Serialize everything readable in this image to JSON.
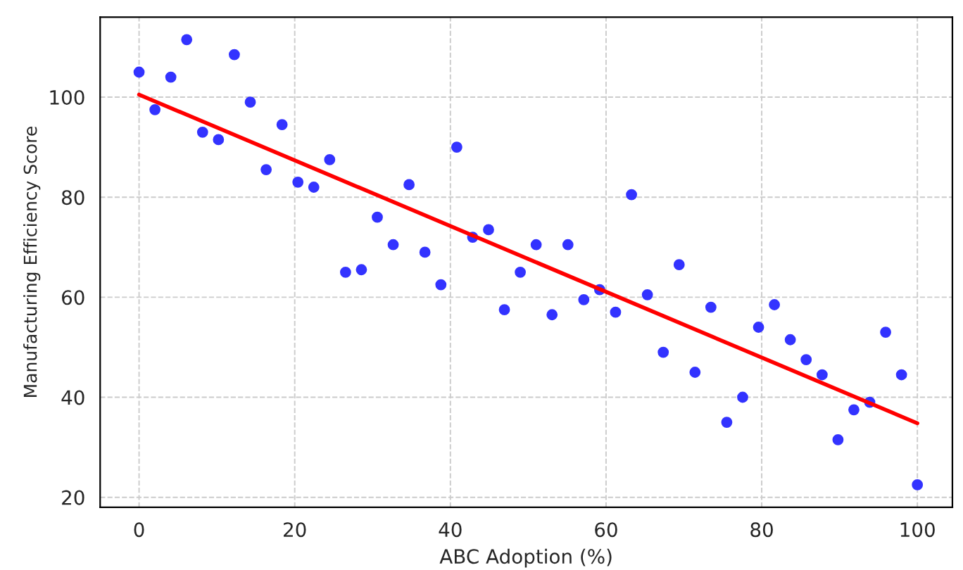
{
  "chart_data": {
    "type": "scatter",
    "xlabel": "ABC Adoption (%)",
    "ylabel": "Manufacturing Efficiency Score",
    "xlim": [
      -5,
      104.5
    ],
    "ylim": [
      18,
      116
    ],
    "xticks": [
      0,
      20,
      40,
      60,
      80,
      100
    ],
    "yticks": [
      20,
      40,
      60,
      80,
      100
    ],
    "grid": true,
    "marker": "circle",
    "series": [
      {
        "color": "#3333ff",
        "x": [
          0,
          2.04,
          4.08,
          6.12,
          8.16,
          10.2,
          12.24,
          14.29,
          16.33,
          18.37,
          20.41,
          22.45,
          24.49,
          26.53,
          28.57,
          30.61,
          32.65,
          34.69,
          36.73,
          38.78,
          40.82,
          42.86,
          44.9,
          46.94,
          48.98,
          51.02,
          53.06,
          55.1,
          57.14,
          59.18,
          61.22,
          63.27,
          65.31,
          67.35,
          69.39,
          71.43,
          73.47,
          75.51,
          77.55,
          79.59,
          81.63,
          83.67,
          85.71,
          87.76,
          89.8,
          91.84,
          93.88,
          95.92,
          97.96,
          100
        ],
        "values": [
          105,
          97.5,
          104,
          111.5,
          93,
          91.5,
          108.5,
          99,
          85.5,
          94.5,
          83,
          82,
          87.5,
          65,
          65.5,
          76,
          70.5,
          82.5,
          69,
          62.5,
          90,
          72,
          73.5,
          57.5,
          65,
          70.5,
          56.5,
          70.5,
          59.5,
          61.5,
          57,
          80.5,
          60.5,
          49,
          66.5,
          45,
          58,
          35,
          40,
          54,
          58.5,
          51.5,
          47.5,
          44.5,
          31.5,
          37.5,
          39,
          53,
          44.5,
          22.5
        ]
      },
      {
        "type": "line",
        "color": "#ff0000",
        "marker": "none",
        "line_style": "solid",
        "x": [
          0,
          100
        ],
        "values": [
          100.5,
          34.8
        ]
      }
    ]
  }
}
